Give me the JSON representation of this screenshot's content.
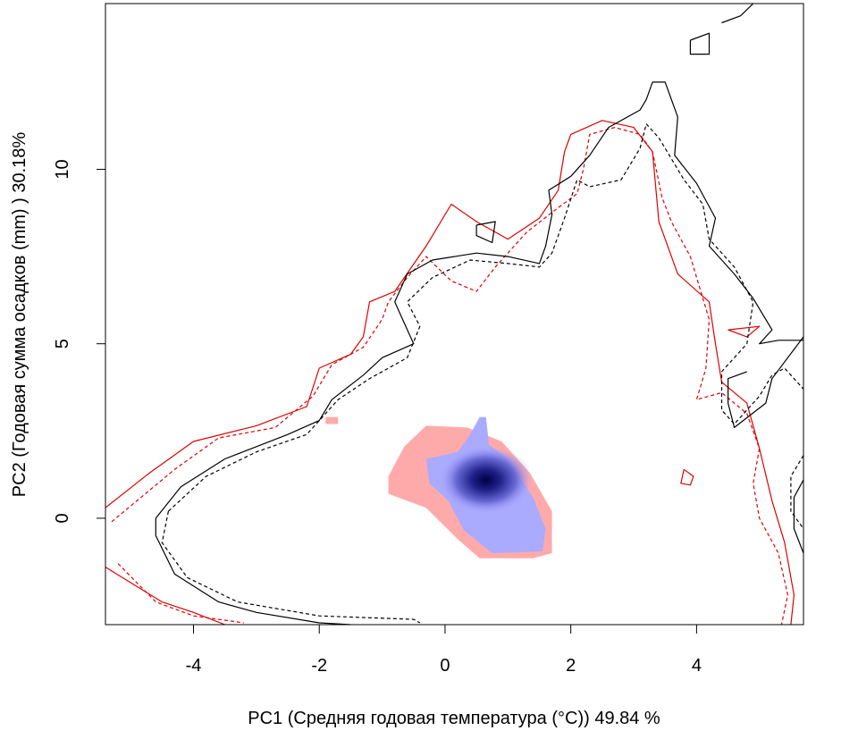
{
  "chart_data": {
    "type": "heatmap",
    "xlabel": "PC1 (Средняя годовая температура (°C)) 49.84 %",
    "ylabel": "PC2 (Годовая сумма осадков  (mm) ) 30.18%",
    "xlim": [
      -5.4,
      5.7
    ],
    "ylim": [
      -3.05,
      14.75
    ],
    "x_ticks": [
      -4,
      -2,
      0,
      2,
      4
    ],
    "y_ticks": [
      0,
      5,
      10
    ],
    "grid": false,
    "legend": "none",
    "colors": {
      "occupancy_low": "#ffaaaa",
      "overlap_low": "#aaaaff",
      "overlap_high": "#000044",
      "contour_red": "#dd0000",
      "contour_black": "#000000"
    },
    "density_regions": [
      {
        "name": "",
        "color": "#ffaaaa",
        "polygon": [
          [
            -0.9,
            1.2
          ],
          [
            -0.65,
            2.05
          ],
          [
            -0.3,
            2.65
          ],
          [
            0.35,
            2.6
          ],
          [
            0.9,
            2.2
          ],
          [
            1.35,
            1.3
          ],
          [
            1.7,
            0.2
          ],
          [
            1.7,
            -1.0
          ],
          [
            1.4,
            -1.15
          ],
          [
            0.55,
            -1.15
          ],
          [
            0.2,
            -0.6
          ],
          [
            -0.3,
            0.3
          ],
          [
            -0.9,
            0.7
          ]
        ]
      },
      {
        "name": "",
        "color": "#ffaaaa",
        "polygon": [
          [
            -1.9,
            2.9
          ],
          [
            -1.7,
            2.9
          ],
          [
            -1.7,
            2.7
          ],
          [
            -1.9,
            2.7
          ]
        ]
      },
      {
        "name": "",
        "color": "#aaaaff",
        "polygon": [
          [
            -0.3,
            1.7
          ],
          [
            0.2,
            1.9
          ],
          [
            0.4,
            2.4
          ],
          [
            0.55,
            2.9
          ],
          [
            0.65,
            2.9
          ],
          [
            0.7,
            2.1
          ],
          [
            1.0,
            1.7
          ],
          [
            1.4,
            0.6
          ],
          [
            1.6,
            -0.3
          ],
          [
            1.55,
            -0.95
          ],
          [
            0.75,
            -1.0
          ],
          [
            0.3,
            -0.35
          ],
          [
            0.05,
            0.5
          ],
          [
            -0.25,
            1.0
          ]
        ]
      }
    ],
    "density_peak": {
      "x": 0.65,
      "y": 1.1
    },
    "contours": [
      {
        "color": "#dd0000",
        "dash": "solid",
        "points": [
          [
            -5.4,
            0.3
          ],
          [
            -4.7,
            1.3
          ],
          [
            -4.0,
            2.2
          ],
          [
            -3.0,
            2.65
          ],
          [
            -2.2,
            3.2
          ],
          [
            -2.0,
            4.3
          ],
          [
            -1.5,
            4.7
          ],
          [
            -1.3,
            5.2
          ],
          [
            -1.2,
            6.2
          ],
          [
            -0.8,
            6.5
          ],
          [
            -0.3,
            7.8
          ],
          [
            0.1,
            9.0
          ],
          [
            0.5,
            8.5
          ],
          [
            1.0,
            8.0
          ],
          [
            1.5,
            8.6
          ],
          [
            1.8,
            9.4
          ],
          [
            1.9,
            10.5
          ],
          [
            2.0,
            11.0
          ],
          [
            2.5,
            11.4
          ],
          [
            3.0,
            11.2
          ],
          [
            3.3,
            10.5
          ],
          [
            3.4,
            8.5
          ],
          [
            3.7,
            7.0
          ],
          [
            4.2,
            6.2
          ],
          [
            4.3,
            5.0
          ],
          [
            4.4,
            3.9
          ],
          [
            4.8,
            3.3
          ],
          [
            5.0,
            2.0
          ],
          [
            5.2,
            0.5
          ],
          [
            5.4,
            -0.7
          ],
          [
            5.55,
            -2.2
          ],
          [
            5.5,
            -3.05
          ]
        ]
      },
      {
        "color": "#dd0000",
        "dash": "solid",
        "points": [
          [
            -5.4,
            -1.4
          ],
          [
            -4.5,
            -2.4
          ],
          [
            -4.0,
            -2.7
          ],
          [
            -3.5,
            -3.05
          ]
        ]
      },
      {
        "color": "#dd0000",
        "dash": "dashed",
        "points": [
          [
            -5.3,
            -0.1
          ],
          [
            -4.3,
            1.4
          ],
          [
            -3.6,
            2.3
          ],
          [
            -2.7,
            2.6
          ],
          [
            -2.1,
            3.5
          ],
          [
            -1.8,
            4.4
          ],
          [
            -1.3,
            4.9
          ],
          [
            -1.0,
            5.7
          ],
          [
            -0.9,
            6.2
          ],
          [
            -0.6,
            6.9
          ],
          [
            -0.3,
            7.5
          ],
          [
            0.1,
            6.8
          ],
          [
            0.5,
            6.5
          ],
          [
            0.8,
            7.2
          ],
          [
            1.3,
            8.2
          ],
          [
            1.8,
            8.9
          ],
          [
            2.1,
            9.3
          ],
          [
            2.2,
            10.0
          ],
          [
            2.3,
            11.0
          ],
          [
            2.7,
            11.2
          ],
          [
            3.1,
            11.0
          ],
          [
            3.3,
            10.5
          ],
          [
            3.45,
            9.2
          ],
          [
            3.6,
            8.5
          ],
          [
            3.9,
            7.5
          ],
          [
            4.2,
            5.7
          ],
          [
            4.15,
            4.3
          ],
          [
            4.0,
            3.4
          ],
          [
            4.4,
            3.6
          ],
          [
            4.8,
            3.0
          ],
          [
            5.0,
            2.0
          ],
          [
            4.9,
            1.0
          ],
          [
            5.0,
            0.0
          ],
          [
            5.3,
            -1.0
          ],
          [
            5.45,
            -2.2
          ],
          [
            5.35,
            -3.05
          ]
        ]
      },
      {
        "color": "#dd0000",
        "dash": "dashed",
        "points": [
          [
            -5.2,
            -1.3
          ],
          [
            -4.6,
            -2.4
          ],
          [
            -4.0,
            -2.8
          ],
          [
            -3.2,
            -3.0
          ]
        ]
      },
      {
        "color": "#dd0000",
        "dash": "solid",
        "points": [
          [
            4.5,
            5.4
          ],
          [
            5.0,
            5.5
          ],
          [
            4.8,
            5.2
          ],
          [
            4.5,
            5.4
          ]
        ]
      },
      {
        "color": "#dd0000",
        "dash": "solid",
        "points": [
          [
            3.8,
            1.4
          ],
          [
            3.95,
            1.2
          ],
          [
            3.9,
            0.95
          ],
          [
            3.75,
            1.0
          ],
          [
            3.8,
            1.4
          ]
        ]
      },
      {
        "color": "#000000",
        "dash": "solid",
        "points": [
          [
            -4.6,
            0.0
          ],
          [
            -4.2,
            0.9
          ],
          [
            -3.5,
            1.7
          ],
          [
            -2.5,
            2.4
          ],
          [
            -2.0,
            2.8
          ],
          [
            -1.8,
            3.4
          ],
          [
            -1.3,
            4.1
          ],
          [
            -1.0,
            4.6
          ],
          [
            -0.5,
            5.0
          ],
          [
            -0.7,
            5.8
          ],
          [
            -0.8,
            6.2
          ],
          [
            -0.6,
            7.0
          ],
          [
            -0.2,
            7.4
          ],
          [
            0.5,
            7.6
          ],
          [
            1.0,
            7.5
          ],
          [
            1.5,
            7.3
          ],
          [
            1.6,
            7.8
          ],
          [
            1.7,
            8.7
          ],
          [
            1.65,
            9.4
          ],
          [
            2.0,
            9.8
          ],
          [
            2.3,
            10.4
          ],
          [
            2.6,
            11.2
          ],
          [
            3.1,
            11.7
          ],
          [
            3.2,
            12.0
          ],
          [
            3.3,
            12.5
          ],
          [
            3.5,
            12.5
          ],
          [
            3.7,
            11.5
          ],
          [
            3.65,
            10.4
          ],
          [
            4.0,
            9.6
          ],
          [
            4.3,
            8.6
          ],
          [
            4.2,
            7.8
          ],
          [
            4.6,
            7.0
          ],
          [
            4.9,
            6.3
          ],
          [
            5.2,
            5.4
          ],
          [
            5.0,
            5.0
          ],
          [
            5.3,
            5.1
          ],
          [
            5.7,
            5.1
          ]
        ]
      },
      {
        "color": "#000000",
        "dash": "solid",
        "points": [
          [
            -4.6,
            0.0
          ],
          [
            -4.6,
            -0.5
          ],
          [
            -4.3,
            -1.6
          ],
          [
            -3.6,
            -2.4
          ],
          [
            -3.0,
            -2.7
          ],
          [
            -2.0,
            -3.0
          ],
          [
            -1.5,
            -3.05
          ]
        ]
      },
      {
        "color": "#000000",
        "dash": "solid",
        "points": [
          [
            5.7,
            -1.0
          ],
          [
            5.55,
            -0.3
          ],
          [
            5.55,
            0.6
          ],
          [
            5.7,
            1.1
          ]
        ]
      },
      {
        "color": "#000000",
        "dash": "solid",
        "points": [
          [
            0.5,
            8.4
          ],
          [
            0.8,
            8.5
          ],
          [
            0.75,
            7.9
          ],
          [
            0.5,
            8.1
          ],
          [
            0.5,
            8.4
          ]
        ]
      },
      {
        "color": "#000000",
        "dash": "solid",
        "points": [
          [
            3.9,
            13.7
          ],
          [
            4.2,
            13.9
          ],
          [
            4.2,
            13.3
          ],
          [
            3.9,
            13.3
          ],
          [
            3.9,
            13.7
          ]
        ]
      },
      {
        "color": "#000000",
        "dash": "solid",
        "points": [
          [
            4.4,
            14.2
          ],
          [
            4.7,
            14.4
          ],
          [
            4.9,
            14.75
          ]
        ]
      },
      {
        "color": "#000000",
        "dash": "solid",
        "points": [
          [
            4.8,
            4.2
          ],
          [
            4.5,
            4.0
          ],
          [
            4.5,
            3.3
          ],
          [
            4.6,
            2.6
          ],
          [
            5.1,
            3.3
          ],
          [
            5.2,
            4.0
          ],
          [
            5.7,
            5.2
          ]
        ]
      },
      {
        "color": "#000000",
        "dash": "dashed",
        "points": [
          [
            -4.4,
            0.2
          ],
          [
            -3.8,
            1.2
          ],
          [
            -3.0,
            1.9
          ],
          [
            -2.2,
            2.4
          ],
          [
            -1.7,
            3.4
          ],
          [
            -1.2,
            4.0
          ],
          [
            -0.6,
            4.6
          ],
          [
            -0.4,
            5.5
          ],
          [
            -0.6,
            6.2
          ],
          [
            -0.2,
            6.9
          ],
          [
            0.4,
            7.4
          ],
          [
            1.0,
            7.3
          ],
          [
            1.5,
            7.2
          ],
          [
            1.7,
            7.6
          ],
          [
            1.9,
            8.6
          ],
          [
            2.1,
            9.7
          ],
          [
            2.3,
            9.5
          ],
          [
            2.8,
            9.7
          ],
          [
            3.1,
            10.6
          ],
          [
            3.2,
            11.3
          ],
          [
            3.4,
            10.9
          ],
          [
            3.8,
            9.7
          ],
          [
            4.1,
            9.0
          ],
          [
            4.2,
            8.0
          ],
          [
            4.6,
            7.2
          ],
          [
            4.9,
            6.2
          ],
          [
            4.8,
            5.0
          ],
          [
            4.4,
            4.2
          ],
          [
            4.4,
            3.1
          ],
          [
            4.6,
            2.7
          ],
          [
            5.0,
            3.5
          ],
          [
            5.2,
            4.1
          ],
          [
            5.4,
            4.3
          ],
          [
            5.7,
            3.7
          ]
        ]
      },
      {
        "color": "#000000",
        "dash": "dashed",
        "points": [
          [
            -4.4,
            0.2
          ],
          [
            -4.5,
            -0.7
          ],
          [
            -4.1,
            -1.7
          ],
          [
            -3.3,
            -2.4
          ],
          [
            -2.0,
            -2.8
          ],
          [
            -0.5,
            -2.9
          ],
          [
            -0.4,
            -3.0
          ]
        ]
      },
      {
        "color": "#000000",
        "dash": "dashed",
        "points": [
          [
            5.7,
            1.8
          ],
          [
            5.5,
            1.2
          ],
          [
            5.5,
            0.2
          ],
          [
            5.7,
            -0.3
          ]
        ]
      }
    ]
  }
}
